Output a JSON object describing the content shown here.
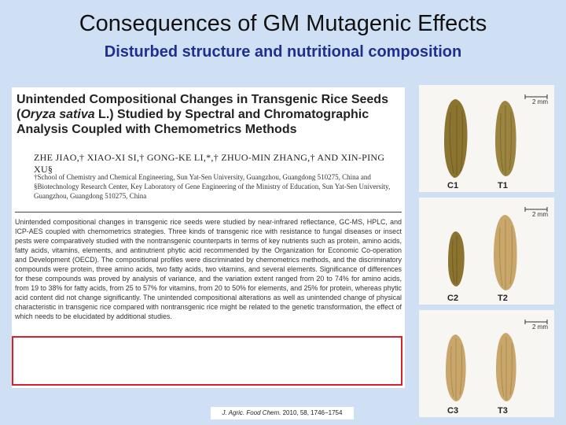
{
  "slide": {
    "title": "Consequences of GM Mutagenic Effects",
    "subtitle": "Disturbed structure and nutritional composition"
  },
  "paper": {
    "title_line1": "Unintended Compositional Changes in Transgenic Rice Seeds",
    "title_line2_open": "(",
    "title_line2_species": "Oryza sativa",
    "title_line2_rest": " L.) Studied by Spectral and Chromatographic",
    "title_line3": "Analysis Coupled with Chemometrics Methods",
    "authors": "ZHE JIAO,† XIAO-XI SI,† GONG-KE LI,*,† ZHUO-MIN ZHANG,† AND XIN-PING XU§",
    "affiliation": "†School of Chemistry and Chemical Engineering, Sun Yat-Sen University, Guangzhou, Guangdong 510275, China and §Biotechnology Research Center, Key Laboratory of Gene Engineering of the Ministry of Education, Sun Yat-Sen University, Guangzhou, Guangdong 510275, China",
    "abstract": "Unintended compositional changes in transgenic rice seeds were studied by near-infrared reflectance, GC-MS, HPLC, and ICP-AES coupled with chemometrics strategies. Three kinds of transgenic rice with resistance to fungal diseases or insect pests were comparatively studied with the nontransgenic counterparts in terms of key nutrients such as protein, amino acids, fatty acids, vitamins, elements, and antinutrient phytic acid recommended by the Organization for Economic Co-operation and Development (OECD). The compositional profiles were discriminated by chemometrics methods, and the discriminatory compounds were protein, three amino acids, two fatty acids, two vitamins, and several elements. Significance of differences for these compounds was proved by analysis of variance, and the variation extent ranged from 20 to 74% for amino acids, from 19 to 38% for fatty acids, from 25 to 57% for vitamins, from 20 to 50% for elements, and 25% for protein, whereas phytic acid content did not change significantly. The unintended compositional alterations as well as unintended change of physical characteristic in transgenic rice compared with nontransgenic rice might be related to the genetic transformation, the effect of which needs to be elucidated by additional studies.",
    "citation_journal": "J. Agric. Food Chem.",
    "citation_ref": " 2010, 58, 1746−1754"
  },
  "grain_panels": [
    {
      "left": "C1",
      "right": "T1",
      "scale": "2 mm"
    },
    {
      "left": "C2",
      "right": "T2",
      "scale": "2 mm"
    },
    {
      "left": "C3",
      "right": "T3",
      "scale": "2 mm"
    }
  ],
  "colors": {
    "background": "#cfe0f4",
    "subtitle": "#1f2f8f",
    "highlight": "#d8202c",
    "grain_control": "#8a7430",
    "grain_transgenic": "#c9a66a"
  }
}
